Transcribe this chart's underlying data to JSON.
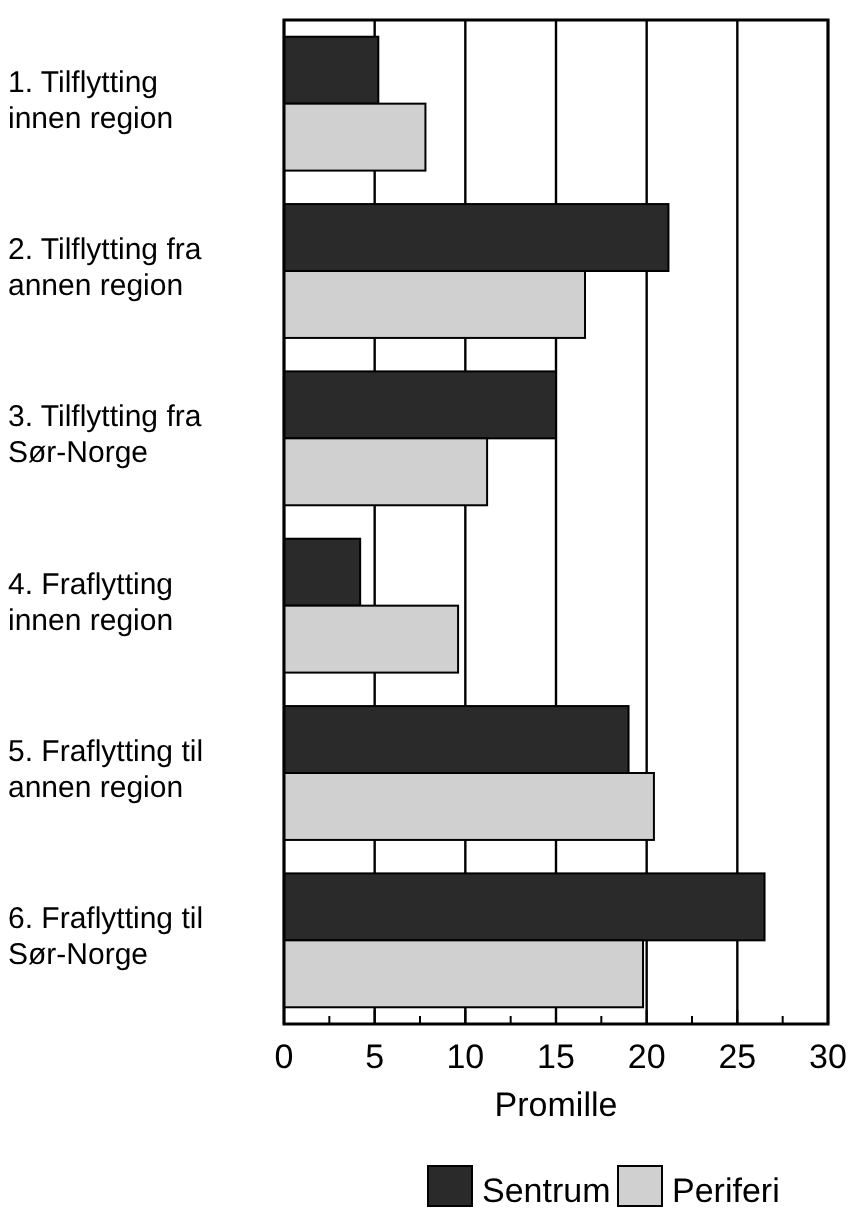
{
  "chart_data": {
    "type": "bar",
    "orientation": "horizontal",
    "categories": [
      "1. Tilflytting\ninnen region",
      "2. Tilflytting fra\nannen region",
      "3. Tilflytting fra\nSør-Norge",
      "4. Fraflytting\ninnen region",
      "5. Fraflytting til\nannen region",
      "6. Fraflytting til\nSør-Norge"
    ],
    "series": [
      {
        "name": "Sentrum",
        "color": "#2a2a2a",
        "values": [
          5.2,
          21.2,
          15.0,
          4.2,
          19.0,
          26.5
        ]
      },
      {
        "name": "Periferi",
        "color": "#d0d0d0",
        "values": [
          7.8,
          16.6,
          11.2,
          9.6,
          20.4,
          19.8
        ]
      }
    ],
    "xlabel": "Promille",
    "xlim": [
      0,
      30
    ],
    "xticks": [
      0,
      {
        "value": 2.5,
        "label": null
      },
      5,
      {
        "value": 7.5,
        "label": null
      },
      10,
      {
        "value": 12.5,
        "label": null
      },
      15,
      {
        "value": 17.5,
        "label": null
      },
      20,
      {
        "value": 22.5,
        "label": null
      },
      25,
      {
        "value": 27.5,
        "label": null
      },
      30
    ],
    "grid": "x",
    "legend": "bottom"
  }
}
